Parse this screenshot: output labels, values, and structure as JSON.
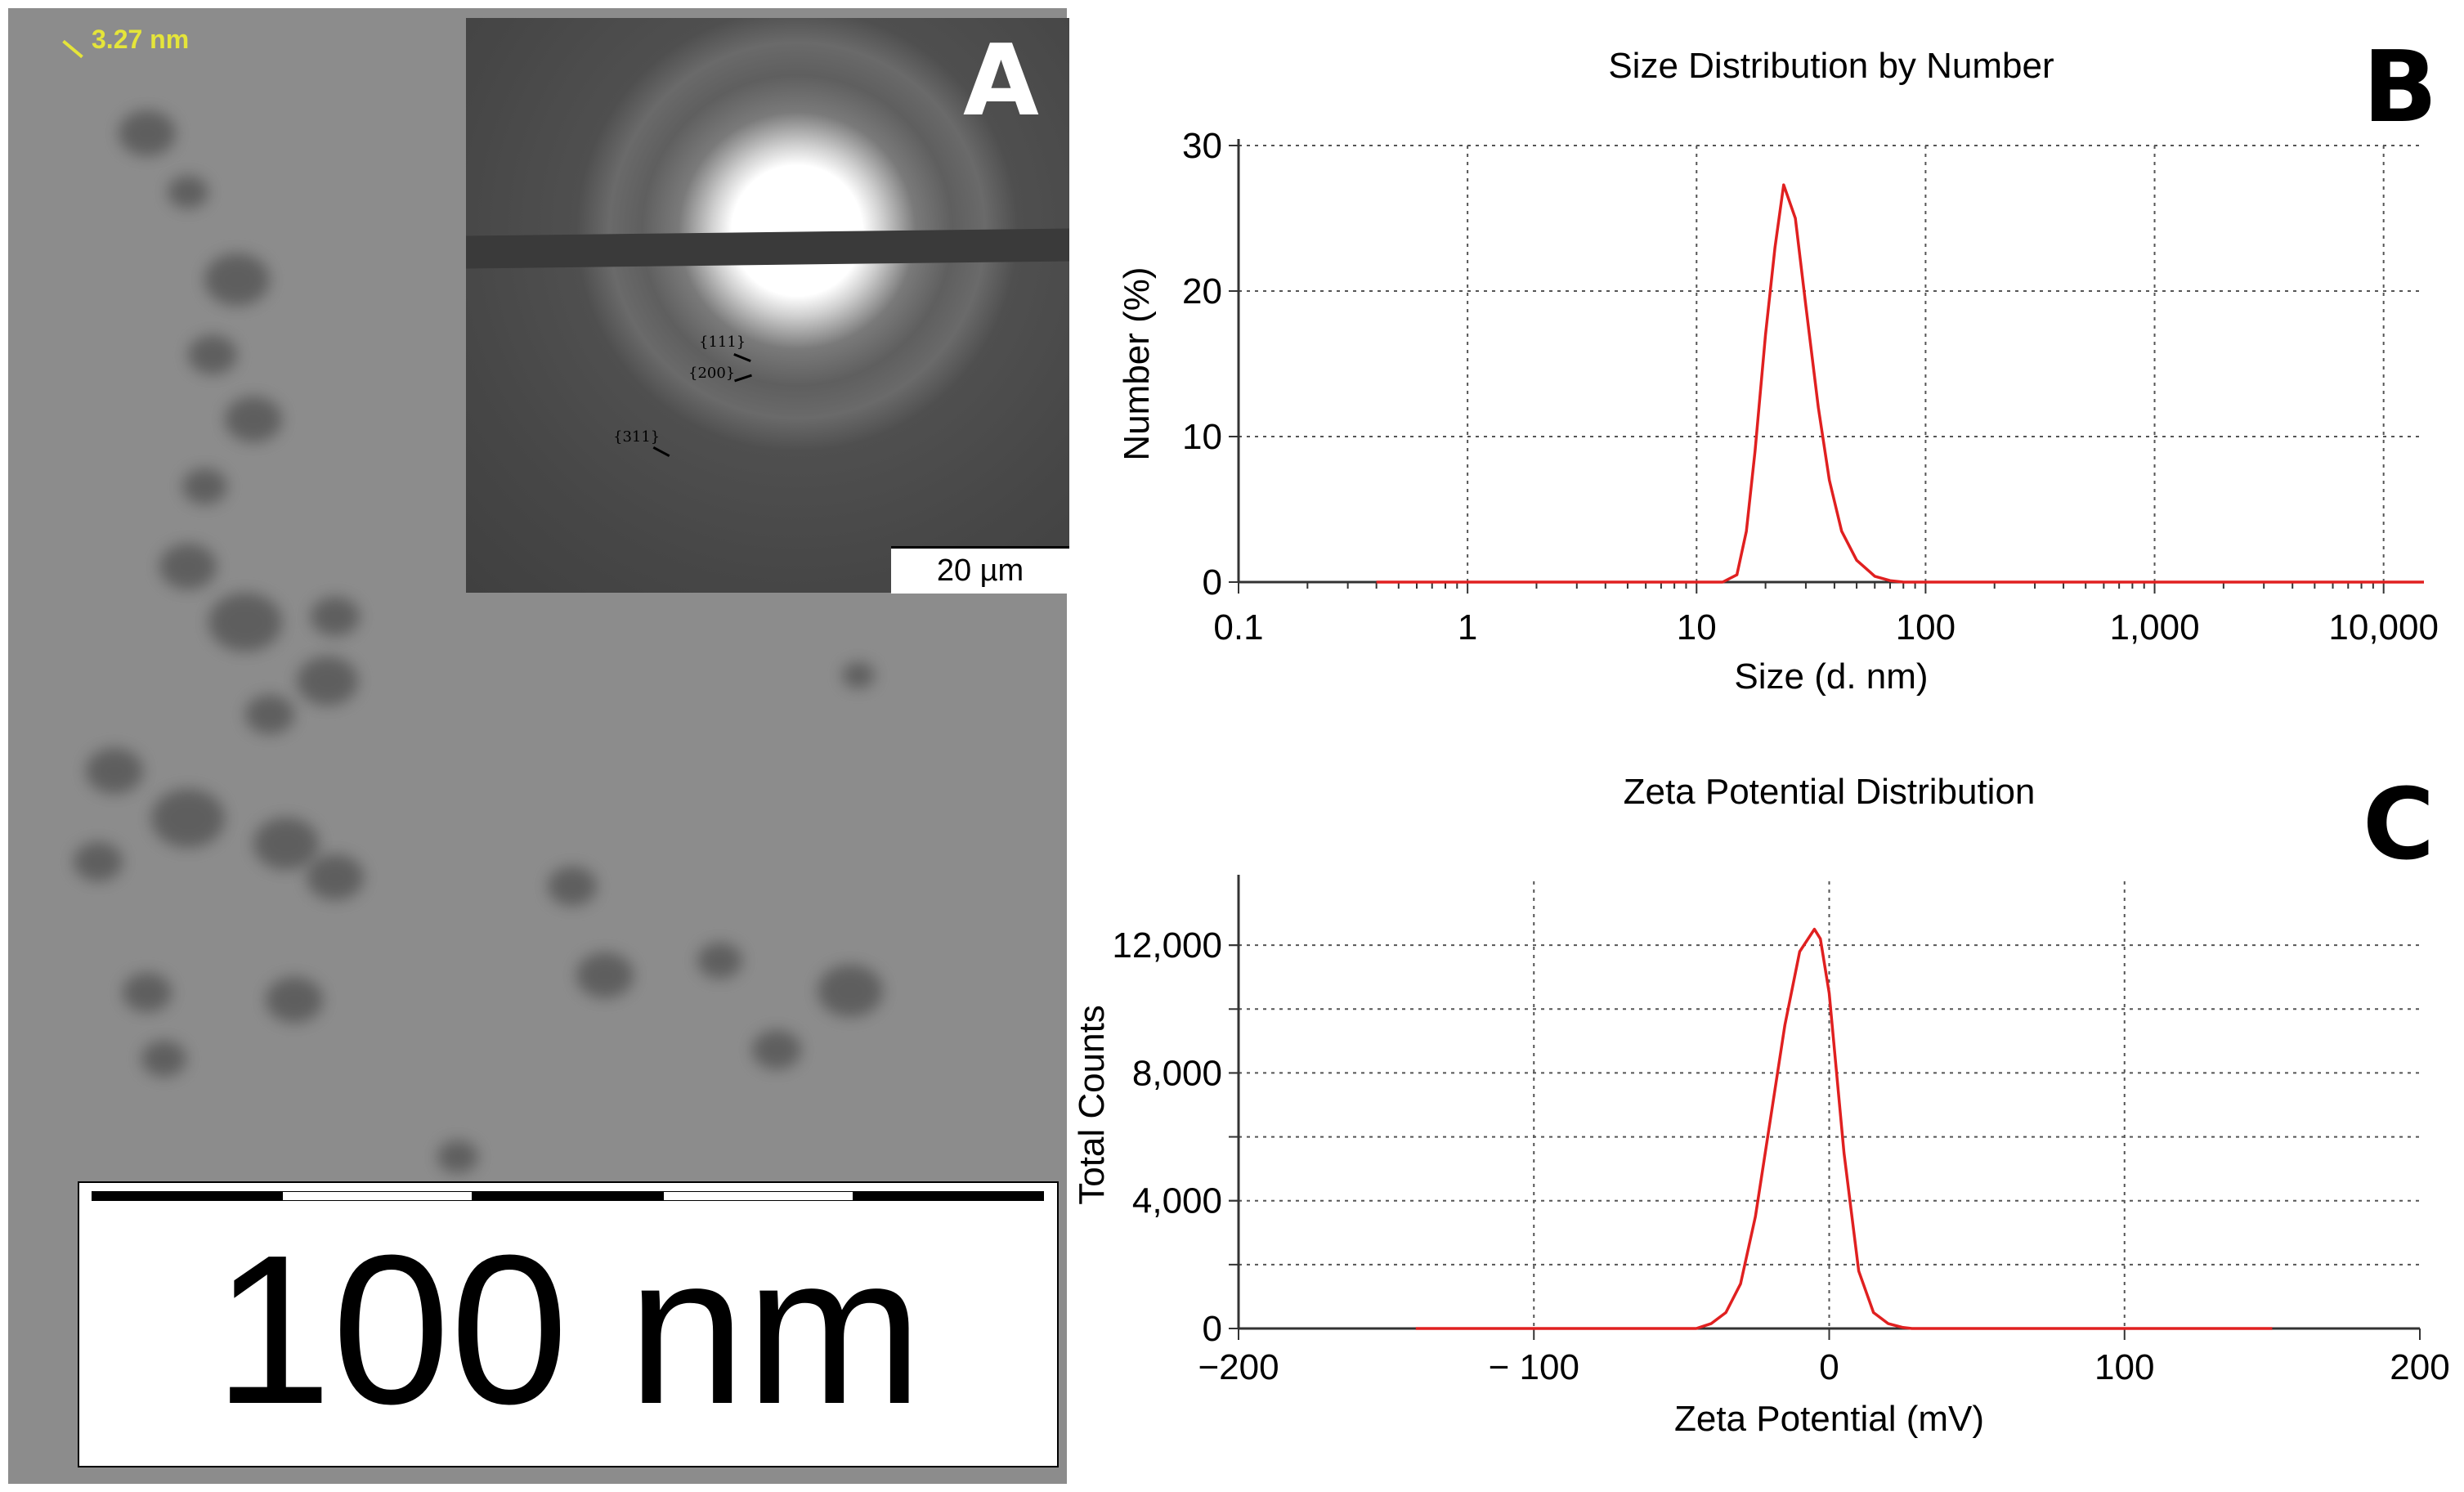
{
  "panel_a": {
    "label": "A",
    "measurement": "3.27 nm",
    "saed_scale": "20 µm",
    "ring_labels": [
      "{111}",
      "{200}",
      "{311}"
    ],
    "scale_bar_label": "100 nm"
  },
  "chart_data": [
    {
      "panel": "B",
      "type": "line",
      "title": "Size Distribution by Number",
      "xlabel": "Size (d. nm)",
      "ylabel": "Number (%)",
      "xscale": "log",
      "xlim": [
        0.1,
        15000
      ],
      "ylim": [
        0,
        30
      ],
      "xticks": [
        0.1,
        1,
        10,
        100,
        1000,
        10000
      ],
      "xtick_labels": [
        "0.1",
        "1",
        "10",
        "100",
        "1,000",
        "10,000"
      ],
      "yticks": [
        0,
        10,
        20,
        30
      ],
      "ytick_labels": [
        "0",
        "10",
        "20",
        "30"
      ],
      "grid": true,
      "line_color": "#e02020",
      "series": [
        {
          "name": "Number",
          "x": [
            0.4,
            13,
            15,
            16.5,
            18,
            20,
            22,
            24,
            27,
            30,
            34,
            38,
            43,
            50,
            60,
            70,
            80,
            15000
          ],
          "y": [
            0,
            0,
            0.5,
            3.5,
            9,
            17,
            23,
            27.3,
            25,
            19,
            12,
            7,
            3.5,
            1.5,
            0.4,
            0.1,
            0,
            0
          ]
        }
      ]
    },
    {
      "panel": "C",
      "type": "line",
      "title": "Zeta Potential Distribution",
      "xlabel": "Zeta Potential (mV)",
      "ylabel": "Total Counts",
      "xlim": [
        -200,
        200
      ],
      "ylim": [
        0,
        14000
      ],
      "xticks": [
        -200,
        -100,
        0,
        100,
        200
      ],
      "xtick_labels": [
        "−200",
        "− 100",
        "0",
        "100",
        "200"
      ],
      "yticks": [
        0,
        4000,
        8000,
        12000
      ],
      "ytick_labels": [
        "0",
        "4,000",
        "8,000",
        "12,000"
      ],
      "ygrid_lines": [
        2000,
        4000,
        6000,
        8000,
        10000,
        12000
      ],
      "grid": true,
      "line_color": "#e02020",
      "series": [
        {
          "name": "Total Counts",
          "x": [
            -140,
            -45,
            -40,
            -35,
            -30,
            -25,
            -20,
            -15,
            -10,
            -5,
            -3,
            0,
            5,
            10,
            15,
            20,
            25,
            28,
            150
          ],
          "y": [
            0,
            0,
            150,
            500,
            1400,
            3500,
            6500,
            9500,
            11800,
            12500,
            12200,
            10500,
            5500,
            1800,
            500,
            150,
            30,
            0,
            0
          ]
        }
      ]
    }
  ]
}
